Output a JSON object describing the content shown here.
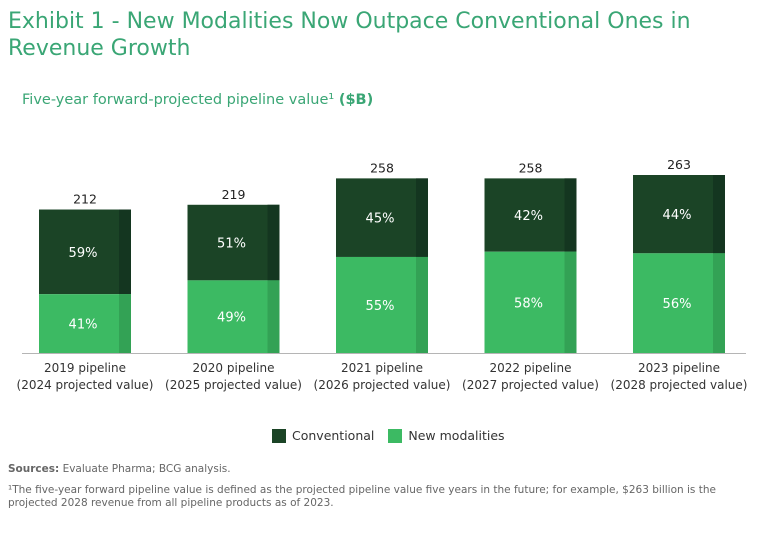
{
  "title": "Exhibit 1 - New Modalities Now Outpace Conventional Ones in Revenue Growth",
  "subtitle_text": "Five-year forward-projected pipeline value¹ ",
  "subtitle_unit": "($B)",
  "legend": {
    "conventional": "Conventional",
    "new_modalities": "New modalities"
  },
  "sources_label": "Sources:",
  "sources_text": " Evaluate Pharma; BCG analysis.",
  "footnote": "¹The five-year forward pipeline value is defined as the projected pipeline value five years in the future; for example, $263 billion is the projected 2028 revenue from all pipeline products as of 2023.",
  "colors": {
    "conventional": "#1b4426",
    "conventional_shade": "#143620",
    "new_modalities": "#3cba63",
    "new_modalities_shade": "#33a255",
    "title": "#3aa675"
  },
  "chart_data": {
    "type": "bar",
    "stacked": true,
    "title": "Five-year forward-projected pipeline value ($B)",
    "categories": [
      [
        "2019 pipeline",
        "(2024 projected value)"
      ],
      [
        "2020 pipeline",
        "(2025 projected value)"
      ],
      [
        "2021 pipeline",
        "(2026 projected value)"
      ],
      [
        "2022 pipeline",
        "(2027 projected value)"
      ],
      [
        "2023 pipeline",
        "(2028 projected value)"
      ]
    ],
    "totals": [
      212,
      219,
      258,
      258,
      263
    ],
    "series": [
      {
        "name": "New modalities",
        "percent_labels": [
          "41%",
          "49%",
          "55%",
          "58%",
          "56%"
        ],
        "shares": [
          0.41,
          0.49,
          0.55,
          0.58,
          0.56
        ]
      },
      {
        "name": "Conventional",
        "percent_labels": [
          "59%",
          "51%",
          "45%",
          "42%",
          "44%"
        ],
        "shares": [
          0.59,
          0.51,
          0.45,
          0.42,
          0.44
        ]
      }
    ],
    "ylim": [
      0,
      263
    ]
  }
}
